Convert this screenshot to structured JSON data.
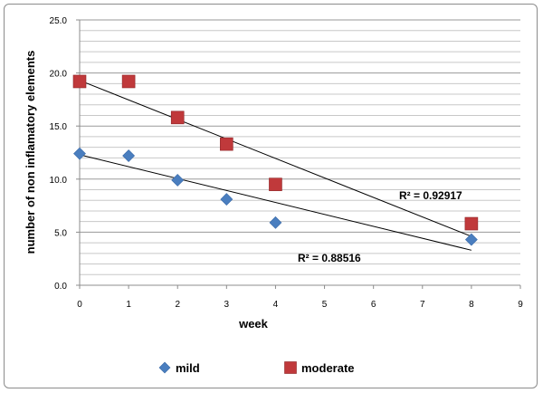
{
  "chart_data": {
    "type": "scatter",
    "xlabel": "week",
    "ylabel": "number of non inflamatory elements",
    "xlim": [
      0,
      9
    ],
    "ylim": [
      0,
      25
    ],
    "x_ticks": [
      "0",
      "1",
      "2",
      "3",
      "4",
      "5",
      "6",
      "7",
      "8",
      "9"
    ],
    "y_ticks": [
      "0.0",
      "5.0",
      "10.0",
      "15.0",
      "20.0",
      "25.0"
    ],
    "grid": "horizontal",
    "legend_position": "bottom",
    "series": [
      {
        "name": "mild",
        "marker": "diamond",
        "color": "#4a7ebf",
        "x": [
          0,
          1,
          2,
          3,
          4,
          8
        ],
        "y": [
          12.4,
          12.2,
          9.9,
          8.1,
          5.9,
          4.3
        ],
        "trendline": {
          "x": [
            0,
            8
          ],
          "y": [
            12.3,
            3.3
          ],
          "r2_label": "R² = 0.88516"
        }
      },
      {
        "name": "moderate",
        "marker": "square",
        "color": "#c0393b",
        "x": [
          0,
          1,
          2,
          3,
          4,
          8
        ],
        "y": [
          19.2,
          19.2,
          15.8,
          13.3,
          9.5,
          5.8
        ],
        "trendline": {
          "x": [
            0,
            8
          ],
          "y": [
            19.3,
            4.6
          ],
          "r2_label": "R² = 0.92917"
        }
      }
    ]
  }
}
